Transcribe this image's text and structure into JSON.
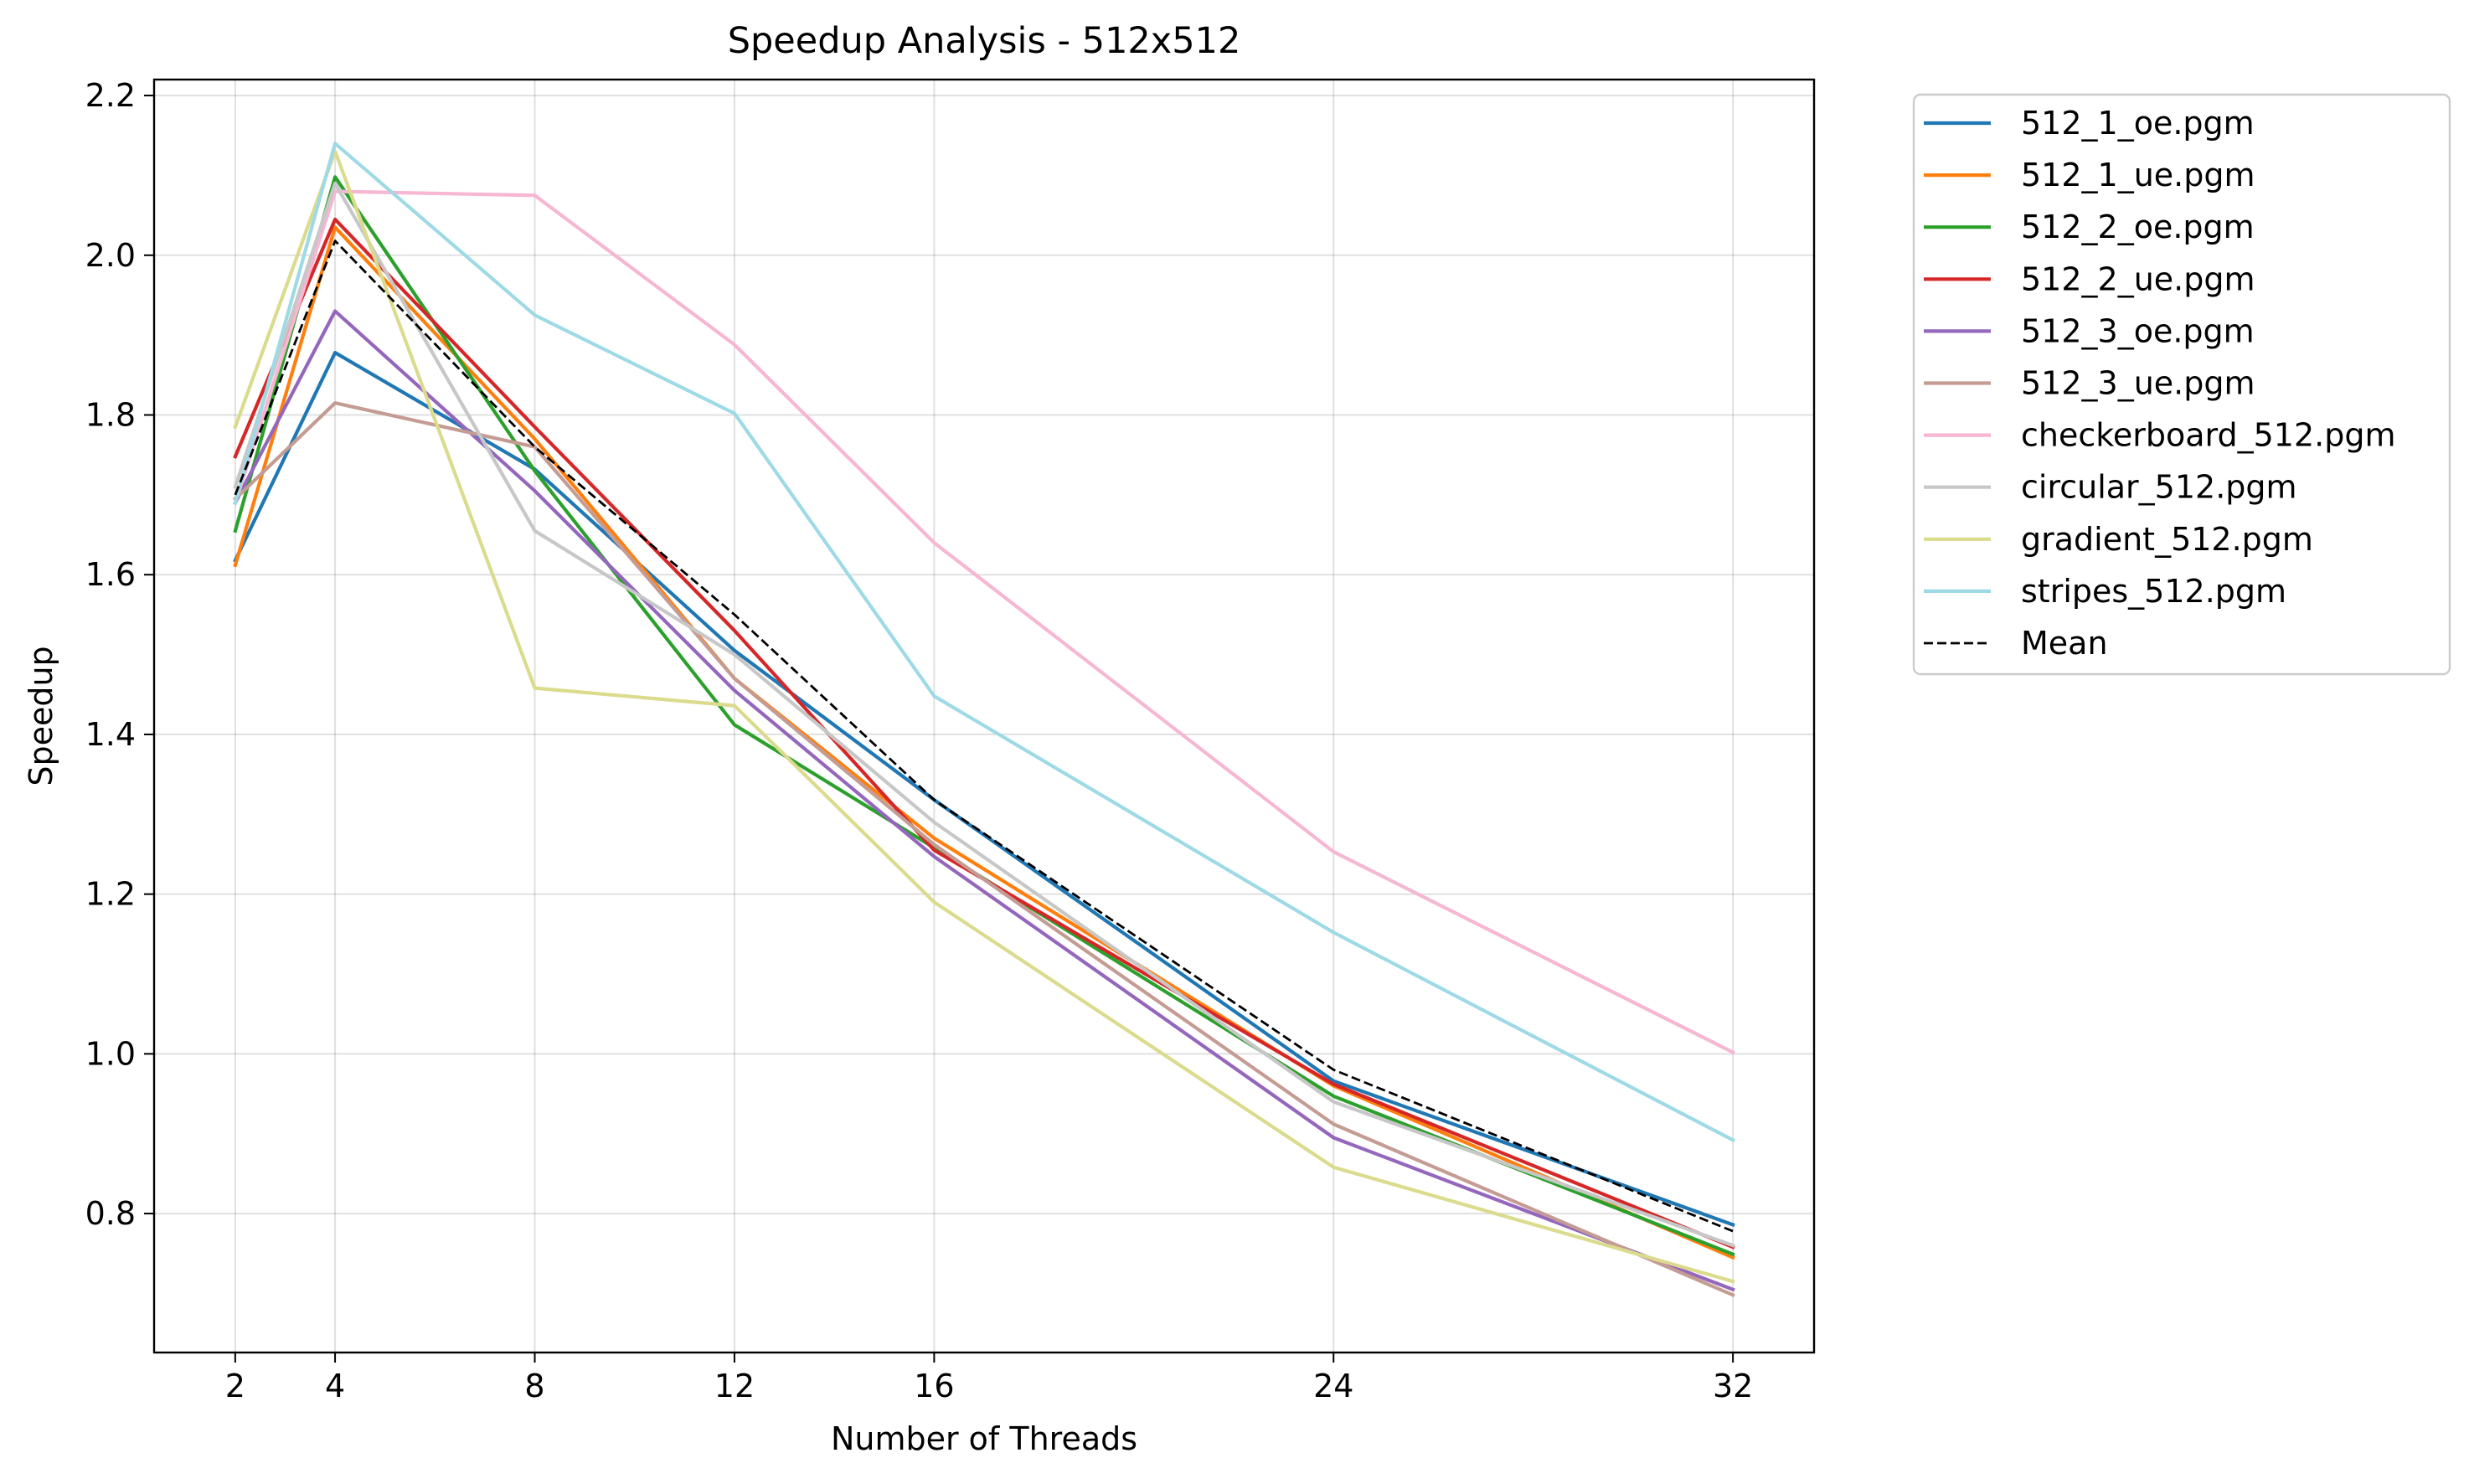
{
  "chart_data": {
    "type": "line",
    "title": "Speedup Analysis - 512x512",
    "xlabel": "Number of Threads",
    "ylabel": "Speedup",
    "x": [
      2,
      4,
      8,
      12,
      16,
      24,
      32
    ],
    "xticks": [
      "2",
      "4",
      "8",
      "12",
      "16",
      "24",
      "32"
    ],
    "yticks": [
      "0.8",
      "1.0",
      "1.2",
      "1.4",
      "1.6",
      "1.8",
      "2.0",
      "2.2"
    ],
    "xlim": [
      0.375,
      33.625
    ],
    "ylim": [
      0.626,
      2.22
    ],
    "grid": true,
    "legend_position": "outside-right-top",
    "series": [
      {
        "name": "512_1_oe.pgm",
        "color": "#1f77b4",
        "style": "solid",
        "values": [
          1.618,
          1.878,
          1.732,
          1.505,
          1.318,
          0.966,
          0.786
        ]
      },
      {
        "name": "512_1_ue.pgm",
        "color": "#ff7f0e",
        "style": "solid",
        "values": [
          1.612,
          2.035,
          1.77,
          1.47,
          1.27,
          0.96,
          0.745
        ]
      },
      {
        "name": "512_2_oe.pgm",
        "color": "#2ca02c",
        "style": "solid",
        "values": [
          1.655,
          2.098,
          1.73,
          1.412,
          1.258,
          0.947,
          0.749
        ]
      },
      {
        "name": "512_2_ue.pgm",
        "color": "#d62728",
        "style": "solid",
        "values": [
          1.748,
          2.045,
          1.785,
          1.53,
          1.255,
          0.962,
          0.758
        ]
      },
      {
        "name": "512_3_oe.pgm",
        "color": "#9467bd",
        "style": "solid",
        "values": [
          1.69,
          1.93,
          1.705,
          1.455,
          1.247,
          0.895,
          0.705
        ]
      },
      {
        "name": "512_3_ue.pgm",
        "color": "#c49c94",
        "style": "solid",
        "values": [
          1.695,
          1.815,
          1.76,
          1.47,
          1.262,
          0.912,
          0.698
        ]
      },
      {
        "name": "checkerboard_512.pgm",
        "color": "#f7b6d2",
        "style": "solid",
        "values": [
          1.69,
          2.08,
          2.075,
          1.888,
          1.64,
          1.253,
          1.002
        ]
      },
      {
        "name": "circular_512.pgm",
        "color": "#c7c7c7",
        "style": "solid",
        "values": [
          1.71,
          2.09,
          1.655,
          1.5,
          1.29,
          0.94,
          0.76
        ]
      },
      {
        "name": "gradient_512.pgm",
        "color": "#dbdb8d",
        "style": "solid",
        "values": [
          1.785,
          2.13,
          1.458,
          1.436,
          1.19,
          0.858,
          0.715
        ]
      },
      {
        "name": "stripes_512.pgm",
        "color": "#9edae5",
        "style": "solid",
        "values": [
          1.69,
          2.14,
          1.925,
          1.802,
          1.448,
          1.152,
          0.892
        ]
      },
      {
        "name": "Mean",
        "color": "#000000",
        "style": "dashed",
        "values": [
          1.7,
          2.018,
          1.76,
          1.55,
          1.318,
          0.98,
          0.778
        ]
      }
    ]
  }
}
